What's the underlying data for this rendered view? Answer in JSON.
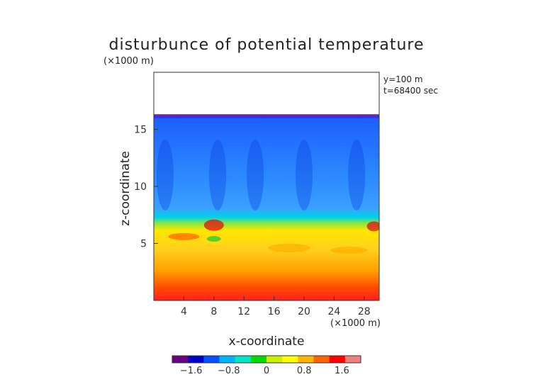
{
  "chart_data": {
    "type": "heatmap",
    "title": "disturbunce of potential temperature",
    "xlabel": "x-coordinate",
    "ylabel": "z-coordinate",
    "x_unit": "(×1000 m)",
    "z_unit": "(×1000 m)",
    "annotations": [
      "y=100 m",
      "t=68400 sec"
    ],
    "x_ticks": [
      4,
      8,
      12,
      16,
      20,
      24,
      28
    ],
    "z_ticks": [
      5,
      10,
      15
    ],
    "xlim": [
      0,
      30
    ],
    "zlim": [
      0,
      20
    ],
    "colorbar": {
      "ticks": [
        "−1.6",
        "−0.8",
        "0",
        "0.8",
        "1.6"
      ],
      "range": [
        -2.0,
        2.0
      ],
      "colors": [
        "#6a0080",
        "#0000c8",
        "#0050ff",
        "#00b4ff",
        "#00e6c8",
        "#00dc00",
        "#c8f000",
        "#ffff00",
        "#ffb400",
        "#ff6400",
        "#ff0000",
        "#f08080"
      ]
    },
    "field_description_levels": {
      "surface_to_1km": 1.8,
      "mid_low_layer": 1.0,
      "inversion_near_6km": 0.0,
      "upper_layer": -0.9,
      "domain_top_km": 16.2
    },
    "grid": false
  }
}
